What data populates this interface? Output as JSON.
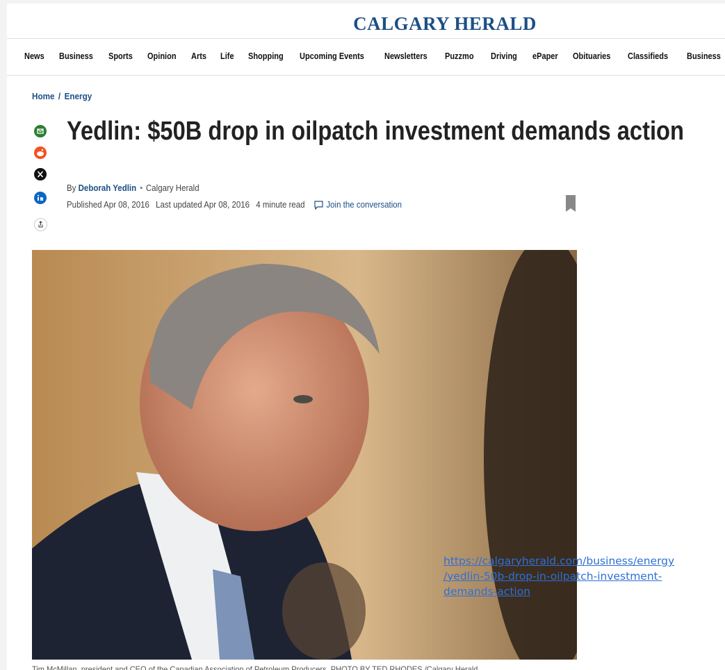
{
  "header": {
    "logo": "CALGARY HERALD",
    "nav": [
      "News",
      "Business",
      "Sports",
      "Opinion",
      "Arts",
      "Life",
      "Shopping",
      "Upcoming Events",
      "Newsletters",
      "Puzzmo",
      "Driving",
      "ePaper",
      "Obituaries",
      "Classifieds",
      "Business"
    ]
  },
  "breadcrumb": {
    "home": "Home",
    "separator": "/",
    "section": "Energy"
  },
  "article": {
    "title": "Yedlin: $50B drop in oilpatch investment demands action",
    "byline_prefix": "By",
    "author": "Deborah Yedlin",
    "outlet": "Calgary Herald",
    "published": "Published Apr 08, 2016",
    "updated": "Last updated Apr 08, 2016",
    "read_time": "4 minute read",
    "comments": "Join the conversation",
    "caption": "Tim McMillan, president and CEO of the Canadian Association of Petroleum Producers. PHOTO BY TED RHODES /Calgary Herald"
  },
  "url_overlay": [
    "https://calgaryherald.com/business/energy",
    "/yedlin-50b-drop-in-oilpatch-investment-",
    "demands-action"
  ]
}
